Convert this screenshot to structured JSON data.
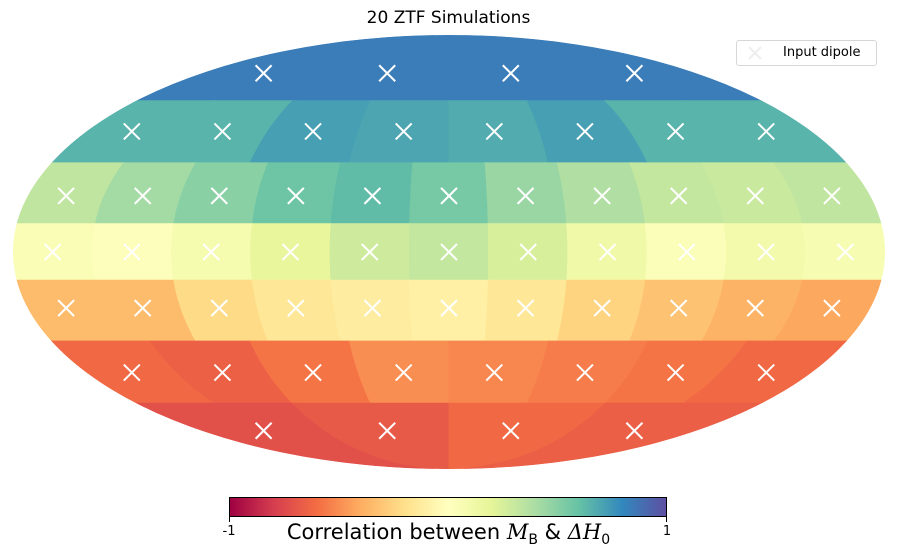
{
  "chart_data": {
    "type": "heatmap",
    "projection": "mollweide",
    "title": "20 ZTF Simulations",
    "legend": {
      "entries": [
        "Input dipole"
      ],
      "placement": "top-right"
    },
    "colorbar": {
      "label_prefix": "Correlation between",
      "label_var1": "M",
      "label_var1_sub": "B",
      "label_join": "&",
      "label_var2": "ΔH",
      "label_var2_sub": "0",
      "min": -1,
      "max": 1,
      "ticks": [
        "-1",
        "1"
      ],
      "colormap": "Spectral"
    },
    "grid": false,
    "pixel_rows": [
      {
        "band": 1,
        "latitude_deg": 66,
        "values": [
          0.84,
          0.84,
          0.84,
          0.84
        ]
      },
      {
        "band": 2,
        "latitude_deg": 42,
        "values": [
          0.65,
          0.65,
          0.72,
          0.7,
          0.68,
          0.72,
          0.65,
          0.65
        ]
      },
      {
        "band": 3,
        "latitude_deg": 19,
        "values": [
          0.33,
          0.42,
          0.5,
          0.58,
          0.62,
          0.55,
          0.45,
          0.38,
          0.32,
          0.3,
          0.33
        ]
      },
      {
        "band": 4,
        "latitude_deg": 0,
        "values": [
          0.05,
          0.02,
          0.08,
          0.18,
          0.28,
          0.32,
          0.25,
          0.12,
          0.03,
          0.1,
          0.07
        ]
      },
      {
        "band": 5,
        "latitude_deg": -19,
        "values": [
          -0.35,
          -0.35,
          -0.22,
          -0.15,
          -0.12,
          -0.1,
          -0.15,
          -0.25,
          -0.32,
          -0.38,
          -0.42
        ]
      },
      {
        "band": 6,
        "latitude_deg": -42,
        "values": [
          -0.62,
          -0.65,
          -0.58,
          -0.5,
          -0.52,
          -0.55,
          -0.58,
          -0.62
        ]
      },
      {
        "band": 7,
        "latitude_deg": -66,
        "values": [
          -0.72,
          -0.68,
          -0.62,
          -0.66
        ]
      }
    ],
    "dipole_markers": "white x at each pixel center"
  }
}
